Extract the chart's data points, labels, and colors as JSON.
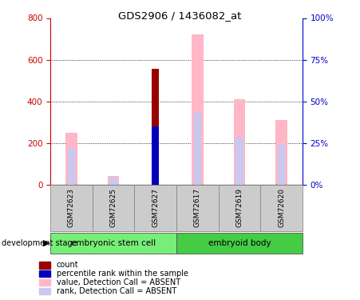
{
  "title": "GDS2906 / 1436082_at",
  "samples": [
    "GSM72623",
    "GSM72625",
    "GSM72627",
    "GSM72617",
    "GSM72619",
    "GSM72620"
  ],
  "groups": [
    {
      "label": "embryonic stem cell",
      "indices": [
        0,
        1,
        2
      ]
    },
    {
      "label": "embryoid body",
      "indices": [
        3,
        4,
        5
      ]
    }
  ],
  "value_absent": [
    250,
    40,
    0,
    720,
    410,
    310
  ],
  "rank_absent_pct": [
    22,
    4,
    0,
    43,
    28,
    24
  ],
  "count_value": [
    0,
    0,
    555,
    0,
    0,
    0
  ],
  "percentile_rank_pct": [
    0,
    0,
    35,
    0,
    0,
    0
  ],
  "left_ylim": [
    0,
    800
  ],
  "right_ylim": [
    0,
    100
  ],
  "left_yticks": [
    0,
    200,
    400,
    600,
    800
  ],
  "right_yticks": [
    0,
    25,
    50,
    75,
    100
  ],
  "right_yticklabels": [
    "0%",
    "25%",
    "50%",
    "75%",
    "100%"
  ],
  "color_value_absent": "#ffb6c6",
  "color_rank_absent": "#c8c8f0",
  "color_count": "#990000",
  "color_percentile": "#0000bb",
  "left_axis_color": "#cc0000",
  "right_axis_color": "#0000cc",
  "legend_items": [
    {
      "color": "#990000",
      "label": "count"
    },
    {
      "color": "#0000bb",
      "label": "percentile rank within the sample"
    },
    {
      "color": "#ffb6c6",
      "label": "value, Detection Call = ABSENT"
    },
    {
      "color": "#c8c8f0",
      "label": "rank, Detection Call = ABSENT"
    }
  ],
  "dev_stage_label": "development stage",
  "group_colors": [
    "#77ee77",
    "#44cc44"
  ],
  "background_color": "#ffffff"
}
